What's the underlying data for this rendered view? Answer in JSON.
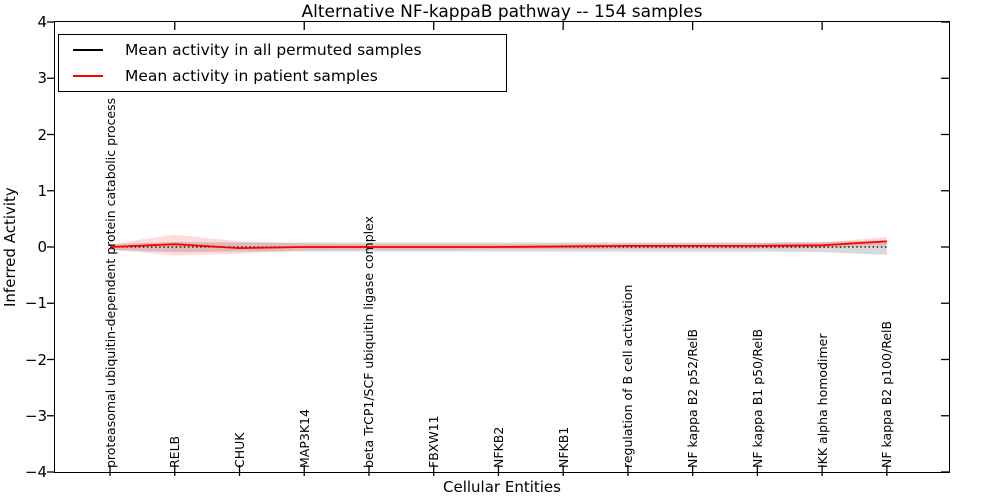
{
  "figure": {
    "title": "Alternative NF-kappaB pathway -- 154 samples"
  },
  "legend": {
    "items": [
      {
        "label": "Mean activity in all permuted samples",
        "color": "#000000"
      },
      {
        "label": "Mean activity in patient samples",
        "color": "#ff0000"
      }
    ],
    "position": "upper left"
  },
  "chart_data": {
    "type": "line",
    "title": "Alternative NF-kappaB pathway -- 154 samples",
    "xlabel": "Cellular Entities",
    "ylabel": "Inferred Activity",
    "ylim": [
      -4,
      4
    ],
    "grid": false,
    "legend_position": "upper left",
    "yticks": [
      {
        "label": "4",
        "value": 4
      },
      {
        "label": "3",
        "value": 3
      },
      {
        "label": "2",
        "value": 2
      },
      {
        "label": "1",
        "value": 1
      },
      {
        "label": "0",
        "value": 0
      },
      {
        "label": "−1",
        "value": -1
      },
      {
        "label": "−2",
        "value": -2
      },
      {
        "label": "−3",
        "value": -3
      },
      {
        "label": "−4",
        "value": -4
      }
    ],
    "categories": [
      "proteasomal ubiquitin-dependent protein catabolic process",
      "RELB",
      "CHUK",
      "MAP3K14",
      "beta TrCP1/SCF ubiquitin ligase complex",
      "FBXW11",
      "NFKB2",
      "NFKB1",
      "regulation of B cell activation",
      "NF kappa B2 p52/RelB",
      "NF kappa B1 p50/RelB",
      "IKK alpha homodimer",
      "NF kappa B2 p100/RelB"
    ],
    "series": [
      {
        "name": "Mean activity in all permuted samples",
        "color": "#000000",
        "style": "dotted",
        "values": [
          0,
          0,
          0,
          0,
          0,
          0,
          0,
          0,
          0,
          0,
          0,
          0,
          0
        ],
        "band_upper": [
          0.05,
          0.09,
          0.08,
          0.08,
          0.08,
          0.08,
          0.08,
          0.08,
          0.08,
          0.08,
          0.08,
          0.09,
          0.12
        ],
        "band_lower": [
          -0.05,
          -0.09,
          -0.08,
          -0.08,
          -0.08,
          -0.08,
          -0.08,
          -0.08,
          -0.08,
          -0.08,
          -0.08,
          -0.09,
          -0.14
        ],
        "band_color": "rgba(120,120,120,0.28)"
      },
      {
        "name": "Mean activity in patient samples",
        "color": "#ff0000",
        "style": "solid",
        "values": [
          0,
          0.05,
          -0.02,
          0,
          0,
          0,
          0,
          0.01,
          0.02,
          0.02,
          0.02,
          0.03,
          0.1
        ],
        "band_upper": [
          0.05,
          0.22,
          0.1,
          0.06,
          0.05,
          0.05,
          0.05,
          0.05,
          0.06,
          0.06,
          0.07,
          0.08,
          0.18
        ],
        "band_lower": [
          -0.05,
          -0.15,
          -0.12,
          -0.06,
          -0.05,
          -0.05,
          -0.04,
          -0.04,
          -0.03,
          -0.03,
          -0.03,
          -0.02,
          0.03
        ],
        "band_color": "rgba(255,0,0,0.14)"
      }
    ]
  }
}
